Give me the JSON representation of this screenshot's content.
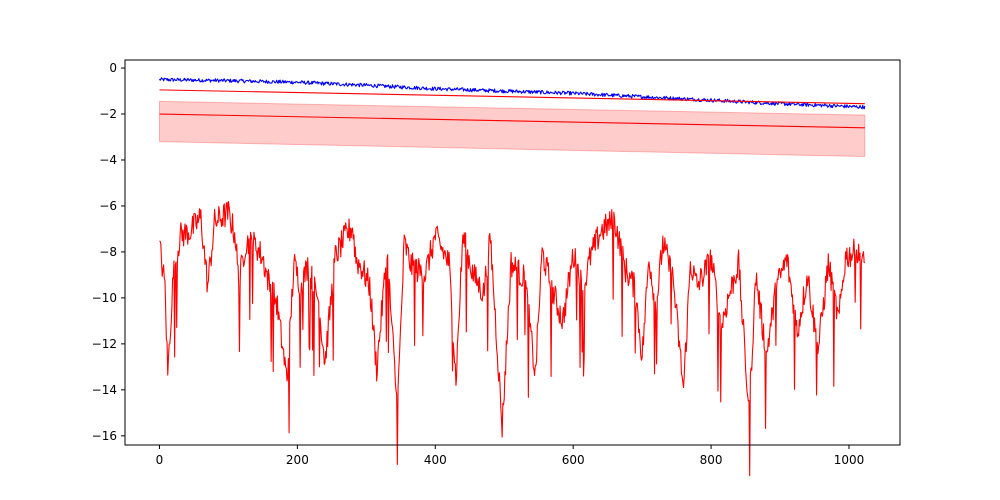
{
  "chart_data": {
    "type": "line",
    "title": "",
    "xlabel": "",
    "ylabel": "",
    "xlim": [
      -50,
      1074
    ],
    "ylim": [
      -16.4,
      0.35
    ],
    "x_ticks": [
      0,
      200,
      400,
      600,
      800,
      1000
    ],
    "x_tick_labels": [
      "0",
      "200",
      "400",
      "600",
      "800",
      "1000"
    ],
    "y_ticks": [
      0,
      -2,
      -4,
      -6,
      -8,
      -10,
      -12,
      -14,
      -16
    ],
    "y_tick_labels": [
      "0",
      "−2",
      "−4",
      "−6",
      "−8",
      "−10",
      "−12",
      "−14",
      "−16"
    ],
    "grid": false,
    "legend": "none",
    "n_points": 1024,
    "series": [
      {
        "color": "#0000ff",
        "style": "noisy line",
        "x": [
          0,
          100,
          200,
          300,
          400,
          500,
          600,
          700,
          800,
          900,
          1023
        ],
        "y": [
          -0.5,
          -0.55,
          -0.62,
          -0.75,
          -0.9,
          -1.0,
          -1.1,
          -1.25,
          -1.4,
          -1.55,
          -1.7
        ],
        "noise_amplitude": 0.08
      },
      {
        "color": "#ff0000",
        "style": "straight line",
        "x": [
          0,
          1023
        ],
        "y": [
          -0.95,
          -1.55
        ]
      },
      {
        "color": "#ff0000",
        "style": "line with shaded band",
        "x": [
          0,
          1023
        ],
        "y": [
          -2.0,
          -2.6
        ],
        "band_lower": [
          -3.2,
          -3.85
        ],
        "band_upper": [
          -1.45,
          -2.05
        ],
        "band_color": "#ff0000",
        "band_opacity": 0.2
      },
      {
        "color": "#ff0000",
        "style": "jagged line",
        "x": [
          0,
          8,
          12,
          20,
          30,
          45,
          60,
          70,
          80,
          90,
          100,
          110,
          115,
          125,
          140,
          150,
          160,
          170,
          185,
          195,
          205,
          215,
          230,
          240,
          255,
          270,
          280,
          285,
          295,
          305,
          315,
          330,
          345,
          355,
          365,
          385,
          400,
          420,
          430,
          440,
          455,
          470,
          480,
          497,
          510,
          530,
          545,
          555,
          570,
          585,
          600,
          615,
          625,
          640,
          660,
          675,
          690,
          700,
          710,
          720,
          730,
          745,
          760,
          770,
          780,
          800,
          815,
          825,
          840,
          855,
          865,
          880,
          895,
          910,
          925,
          940,
          955,
          970,
          985,
          995,
          1010,
          1023
        ],
        "y": [
          -7.7,
          -9.5,
          -13.3,
          -9.0,
          -7.3,
          -7.1,
          -6.5,
          -9.5,
          -6.7,
          -6.5,
          -6.3,
          -7.3,
          -9.4,
          -7.6,
          -7.7,
          -8.3,
          -9.5,
          -10.2,
          -13.6,
          -8.5,
          -9.5,
          -8.6,
          -10.0,
          -12.8,
          -8.2,
          -7.3,
          -6.9,
          -8.3,
          -8.8,
          -9.5,
          -13.1,
          -8.0,
          -14.9,
          -7.6,
          -8.6,
          -9.0,
          -7.3,
          -8.5,
          -13.6,
          -7.3,
          -9.0,
          -9.8,
          -7.4,
          -15.6,
          -8.5,
          -9.2,
          -13.4,
          -8.0,
          -9.7,
          -11.0,
          -8.1,
          -9.6,
          -8.2,
          -7.1,
          -6.6,
          -8.7,
          -9.6,
          -12.6,
          -8.2,
          -10.5,
          -7.6,
          -9.2,
          -14.0,
          -8.5,
          -9.5,
          -8.3,
          -11.2,
          -10.0,
          -8.5,
          -15.0,
          -9.0,
          -12.5,
          -9.5,
          -8.3,
          -11.5,
          -9.0,
          -12.3,
          -8.5,
          -11.0,
          -8.2,
          -8.0,
          -8.6
        ],
        "noise_amplitude": 0.6
      }
    ]
  }
}
